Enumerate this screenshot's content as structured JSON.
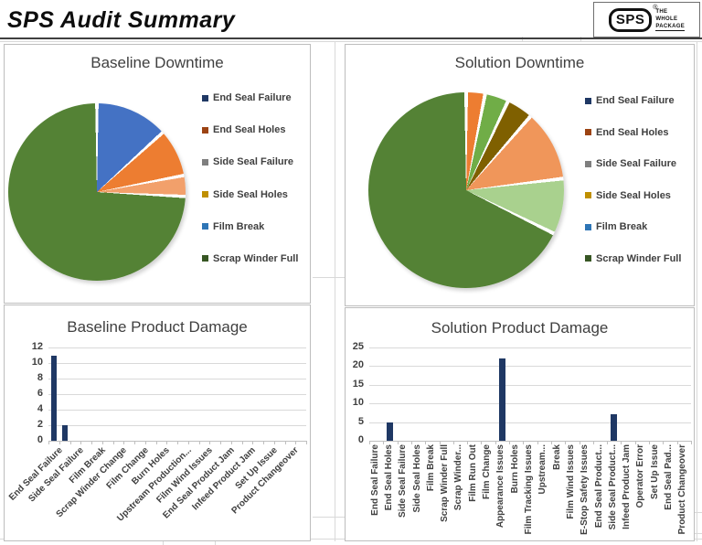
{
  "header": {
    "title": "SPS  Audit Summary",
    "logo": {
      "mark": "SPS",
      "registered": "®",
      "tagline": [
        "THE",
        "WHOLE",
        "PACKAGE"
      ]
    }
  },
  "chart_data": [
    {
      "type": "pie",
      "title": "Baseline Downtime",
      "legend_position": "right",
      "legend": [
        {
          "label": "End Seal Failure",
          "marker_color": "#1F3864"
        },
        {
          "label": "End Seal Holes",
          "marker_color": "#9C4313"
        },
        {
          "label": "Side Seal Failure",
          "marker_color": "#7F7F7F"
        },
        {
          "label": "Side Seal Holes",
          "marker_color": "#BF8F00"
        },
        {
          "label": "Film Break",
          "marker_color": "#2E75B6"
        },
        {
          "label": "Scrap Winder Full",
          "marker_color": "#375623"
        }
      ],
      "slices": [
        {
          "color": "#4472C4",
          "percent": 13.3
        },
        {
          "color": "#ED7D31",
          "percent": 8.7
        },
        {
          "color": "#F2A06B",
          "percent": 3.8
        },
        {
          "color": "#548235",
          "percent": 74.2
        }
      ]
    },
    {
      "type": "pie",
      "title": "Solution Downtime",
      "legend_position": "right",
      "legend": [
        {
          "label": "End Seal Failure",
          "marker_color": "#1F3864"
        },
        {
          "label": "End Seal Holes",
          "marker_color": "#9C4313"
        },
        {
          "label": "Side Seal Failure",
          "marker_color": "#7F7F7F"
        },
        {
          "label": "Side Seal Holes",
          "marker_color": "#BF8F00"
        },
        {
          "label": "Film Break",
          "marker_color": "#2E75B6"
        },
        {
          "label": "Scrap Winder Full",
          "marker_color": "#375623"
        }
      ],
      "slices": [
        {
          "color": "#ED7D31",
          "percent": 3.1
        },
        {
          "color": "#70AD47",
          "percent": 3.9
        },
        {
          "color": "#7F6000",
          "percent": 4.4
        },
        {
          "color": "#F0965A",
          "percent": 11.7
        },
        {
          "color": "#A9D18E",
          "percent": 9.2
        },
        {
          "color": "#548235",
          "percent": 67.7
        }
      ]
    },
    {
      "type": "bar",
      "title": "Baseline Product Damage",
      "ylim": [
        0,
        12
      ],
      "yticks": [
        0,
        2,
        4,
        6,
        8,
        10,
        12
      ],
      "grid": true,
      "bar_color": "#1F3864",
      "label_rotation_deg": 45,
      "x_labels": [
        "End Seal Failure",
        "",
        "Side Seal Failure",
        "",
        "Film Break",
        "",
        "Scrap Winder Change",
        "",
        "Film Change",
        "",
        "Burn Holes",
        "",
        "Upstream Production...",
        "",
        "Film Wind Issues",
        "",
        "End Seal Product Jam",
        "",
        "Infeed Product Jam",
        "",
        "Set Up Issue",
        "",
        "Product Changeover",
        ""
      ],
      "values": [
        11,
        2,
        0,
        0,
        0,
        0,
        0,
        0,
        0,
        0,
        0,
        0,
        0,
        0,
        0,
        0,
        0,
        0,
        0,
        0,
        0,
        0,
        0,
        0
      ]
    },
    {
      "type": "bar",
      "title": "Solution Product Damage",
      "ylim": [
        0,
        25
      ],
      "yticks": [
        0,
        5,
        10,
        15,
        20,
        25
      ],
      "grid": true,
      "bar_color": "#1F3864",
      "label_rotation_deg": 90,
      "x_labels": [
        "End Seal Failure",
        "End Seal Holes",
        "Side Seal Failure",
        "Side Seal Holes",
        "Film Break",
        "Scrap Winder Full",
        "Scrap Winder...",
        "Film Run Out",
        "Film Change",
        "Appearance Issues",
        "Burn Holes",
        "Film Tracking Issues",
        "Upstream...",
        "Break",
        "Film Wind Issues",
        "E-Stop Safety Issues",
        "End Seal Product...",
        "Side Seal Product...",
        "Infeed Product Jam",
        "Operator Error",
        "Set Up Issue",
        "End Seal Pad...",
        "Product Changeover"
      ],
      "values": [
        0,
        5,
        0,
        0,
        0,
        0,
        0,
        0,
        0,
        22,
        0,
        0,
        0,
        0,
        0,
        0,
        0,
        7,
        0,
        0,
        0,
        0,
        0
      ]
    }
  ]
}
